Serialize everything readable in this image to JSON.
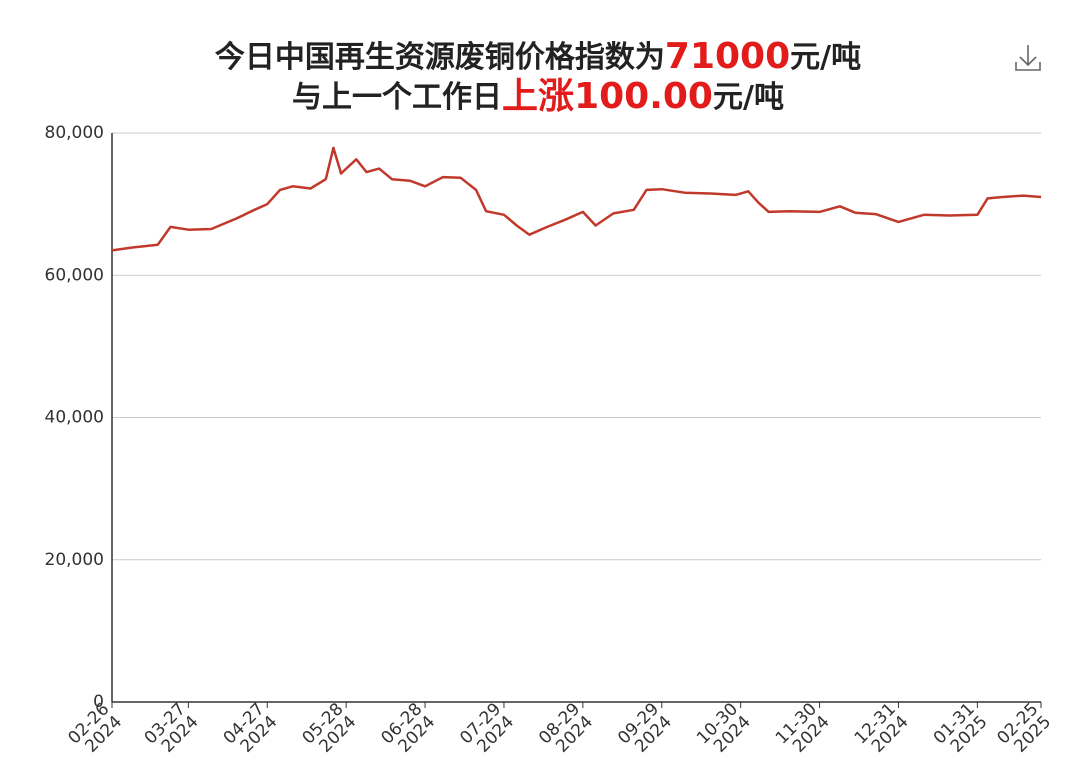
{
  "chart_data": {
    "type": "line",
    "title_line1": [
      "今日中国再生资源废铜价格指数为",
      "71000",
      "元/吨"
    ],
    "title_line2": [
      "与上一个工作日",
      "上涨",
      "100.00",
      "元/吨"
    ],
    "x": [
      "2024-02-26",
      "2024-03-05",
      "2024-03-15",
      "2024-03-20",
      "2024-03-27",
      "2024-04-05",
      "2024-04-15",
      "2024-04-22",
      "2024-04-27",
      "2024-05-02",
      "2024-05-07",
      "2024-05-14",
      "2024-05-20",
      "2024-05-23",
      "2024-05-26",
      "2024-05-28",
      "2024-06-01",
      "2024-06-05",
      "2024-06-10",
      "2024-06-15",
      "2024-06-22",
      "2024-06-28",
      "2024-07-05",
      "2024-07-12",
      "2024-07-18",
      "2024-07-22",
      "2024-07-29",
      "2024-08-03",
      "2024-08-08",
      "2024-08-15",
      "2024-08-22",
      "2024-08-29",
      "2024-09-03",
      "2024-09-10",
      "2024-09-18",
      "2024-09-23",
      "2024-09-29",
      "2024-10-08",
      "2024-10-18",
      "2024-10-28",
      "2024-11-02",
      "2024-11-06",
      "2024-11-10",
      "2024-11-18",
      "2024-11-30",
      "2024-12-08",
      "2024-12-14",
      "2024-12-22",
      "2024-12-31",
      "2025-01-10",
      "2025-01-20",
      "2025-01-31",
      "2025-02-04",
      "2025-02-10",
      "2025-02-18",
      "2025-02-25"
    ],
    "values": [
      63500,
      63900,
      64300,
      66800,
      66400,
      66500,
      68000,
      69200,
      70000,
      72000,
      72500,
      72200,
      73500,
      77900,
      74300,
      75000,
      76300,
      74500,
      75000,
      73500,
      73300,
      72500,
      73800,
      73700,
      72000,
      69000,
      68500,
      67000,
      65700,
      66800,
      67800,
      68900,
      67000,
      68700,
      69200,
      72000,
      72100,
      71600,
      71500,
      71300,
      71800,
      70200,
      68900,
      69000,
      68900,
      69700,
      68800,
      68600,
      67500,
      68500,
      68400,
      68500,
      70800,
      71000,
      71200,
      71000
    ],
    "color": "#c0392b",
    "xlim": [
      "2024-02-26",
      "2025-02-25"
    ],
    "xticks": [
      {
        "value": "2024-02-26",
        "label": [
          "02-26",
          "2024"
        ]
      },
      {
        "value": "2024-03-27",
        "label": [
          "03-27",
          "2024"
        ]
      },
      {
        "value": "2024-04-27",
        "label": [
          "04-27",
          "2024"
        ]
      },
      {
        "value": "2024-05-28",
        "label": [
          "05-28",
          "2024"
        ]
      },
      {
        "value": "2024-06-28",
        "label": [
          "06-28",
          "2024"
        ]
      },
      {
        "value": "2024-07-29",
        "label": [
          "07-29",
          "2024"
        ]
      },
      {
        "value": "2024-08-29",
        "label": [
          "08-29",
          "2024"
        ]
      },
      {
        "value": "2024-09-29",
        "label": [
          "09-29",
          "2024"
        ]
      },
      {
        "value": "2024-10-30",
        "label": [
          "10-30",
          "2024"
        ]
      },
      {
        "value": "2024-11-30",
        "label": [
          "11-30",
          "2024"
        ]
      },
      {
        "value": "2024-12-31",
        "label": [
          "12-31",
          "2024"
        ]
      },
      {
        "value": "2025-01-31",
        "label": [
          "01-31",
          "2025"
        ]
      },
      {
        "value": "2025-02-25",
        "label": [
          "02-25",
          "2025"
        ]
      }
    ],
    "ylim": [
      0,
      80000
    ],
    "yticks": [
      0,
      {
        "value": 20000,
        "label": "20,000"
      },
      {
        "value": 40000,
        "label": "40,000"
      },
      {
        "value": 60000,
        "label": "60,000"
      },
      {
        "value": 80000,
        "label": "80,000"
      }
    ],
    "grid": true
  }
}
